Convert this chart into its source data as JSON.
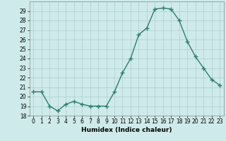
{
  "x": [
    0,
    1,
    2,
    3,
    4,
    5,
    6,
    7,
    8,
    9,
    10,
    11,
    12,
    13,
    14,
    15,
    16,
    17,
    18,
    19,
    20,
    21,
    22,
    23
  ],
  "y": [
    20.5,
    20.5,
    19.0,
    18.5,
    19.2,
    19.5,
    19.2,
    19.0,
    19.0,
    19.0,
    20.5,
    22.5,
    24.0,
    26.5,
    27.2,
    29.2,
    29.3,
    29.2,
    28.0,
    25.8,
    24.2,
    23.0,
    21.8,
    21.2
  ],
  "line_color": "#2e7d6e",
  "marker": "+",
  "markersize": 4,
  "linewidth": 1.0,
  "bg_color": "#ceeaea",
  "grid_color": "#aecece",
  "xlabel": "Humidex (Indice chaleur)",
  "ylim": [
    18,
    30
  ],
  "xlim": [
    -0.5,
    23.5
  ],
  "yticks": [
    18,
    19,
    20,
    21,
    22,
    23,
    24,
    25,
    26,
    27,
    28,
    29
  ],
  "xticks": [
    0,
    1,
    2,
    3,
    4,
    5,
    6,
    7,
    8,
    9,
    10,
    11,
    12,
    13,
    14,
    15,
    16,
    17,
    18,
    19,
    20,
    21,
    22,
    23
  ],
  "xlabel_fontsize": 6.5,
  "tick_fontsize": 5.5
}
